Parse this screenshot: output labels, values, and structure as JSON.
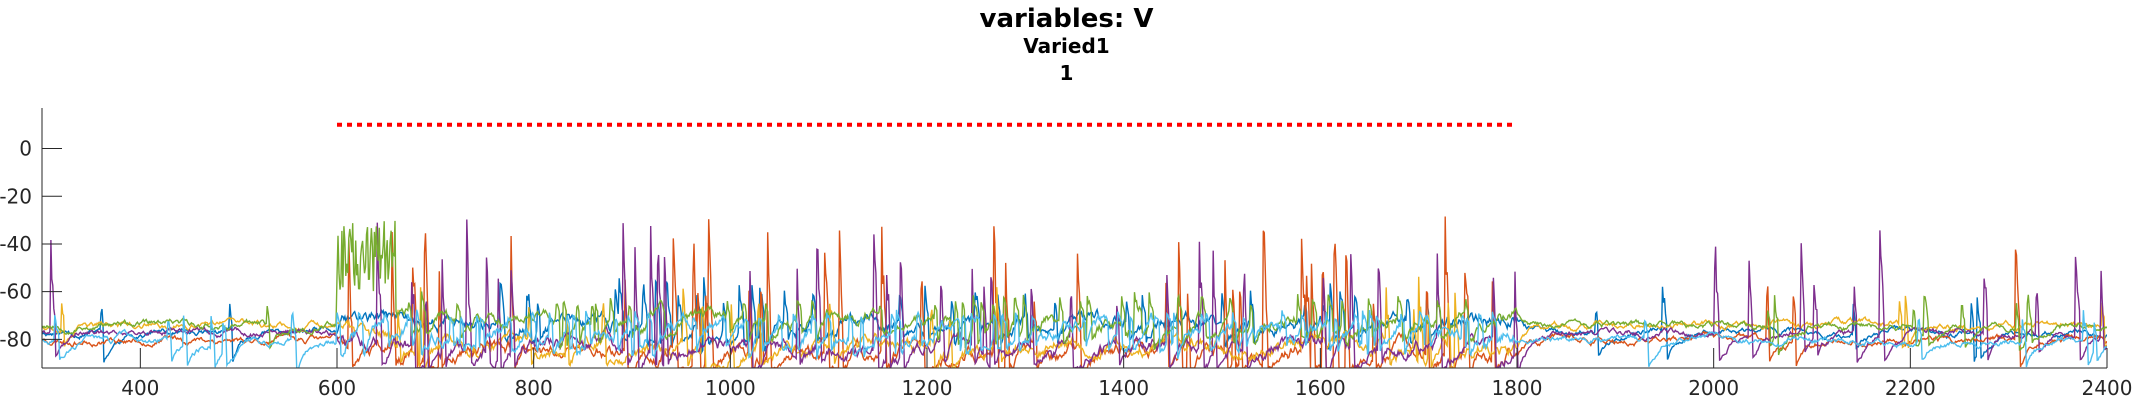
{
  "chart_data": {
    "type": "line",
    "title": "variables: V",
    "subtitle": [
      "Varied1",
      "1"
    ],
    "xlabel": "",
    "ylabel": "",
    "xlim": [
      300,
      2400
    ],
    "ylim": [
      -92,
      17
    ],
    "xticks": [
      400,
      600,
      800,
      1000,
      1200,
      1400,
      1600,
      1800,
      2000,
      2200,
      2400
    ],
    "yticks": [
      0,
      -20,
      -40,
      -60,
      -80
    ],
    "grid": false,
    "legend": "none",
    "annotations": [
      {
        "type": "dotted-line",
        "color": "#ff0000",
        "x": [
          600,
          1800
        ],
        "y": 10
      }
    ],
    "stimulus_window": [
      600,
      1800
    ],
    "series": [
      {
        "color": "#0072bd",
        "baseline": -77,
        "active": -72,
        "spike_rate": 0.03,
        "spike_peak": -55,
        "seed": 11
      },
      {
        "color": "#d95319",
        "baseline": -80,
        "active": -84,
        "spike_rate": 0.028,
        "spike_peak": -30,
        "seed": 23
      },
      {
        "color": "#edb120",
        "baseline": -74,
        "active": -82,
        "spike_rate": 0.02,
        "spike_peak": -55,
        "seed": 37
      },
      {
        "color": "#7e2f8e",
        "baseline": -77,
        "active": -82,
        "spike_rate": 0.032,
        "spike_peak": -35,
        "seed": 41
      },
      {
        "color": "#77ac30",
        "baseline": -74,
        "active": -70,
        "spike_rate": 0.045,
        "spike_peak": -60,
        "seed": 53
      },
      {
        "color": "#4dbeee",
        "baseline": -80,
        "active": -74,
        "spike_rate": 0.06,
        "spike_peak": -68,
        "seed": 67
      }
    ]
  }
}
